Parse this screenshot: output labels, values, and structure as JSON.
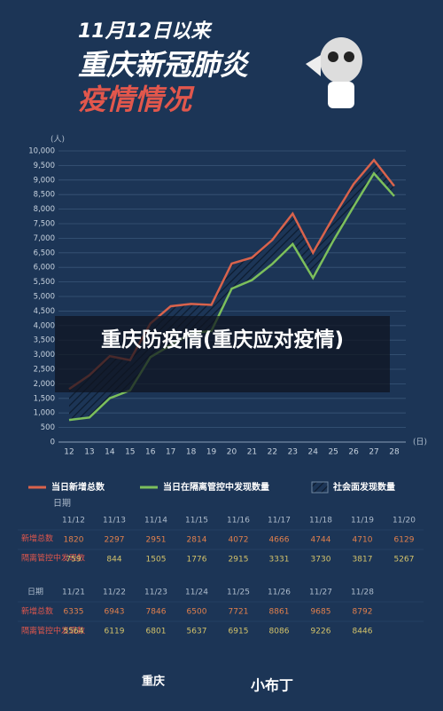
{
  "header": {
    "line1": "11月12日以来",
    "line2": "重庆新冠肺炎",
    "line3": "疫情情况"
  },
  "overlay_caption": "重庆防疫情(重庆应对疫情)",
  "chart_data": {
    "type": "line",
    "y_unit": "(人)",
    "x_unit": "(日)",
    "categories": [
      "12",
      "13",
      "14",
      "15",
      "16",
      "17",
      "18",
      "19",
      "20",
      "21",
      "22",
      "23",
      "24",
      "25",
      "26",
      "27",
      "28"
    ],
    "series": [
      {
        "name": "当日新增总数",
        "color": "#d9634c",
        "values": [
          1820,
          2297,
          2951,
          2814,
          4072,
          4666,
          4744,
          4710,
          6129,
          6335,
          6943,
          7846,
          6500,
          7721,
          8861,
          9685,
          8792
        ]
      },
      {
        "name": "当日在隔离管控中发现数量",
        "color": "#7cbf5c",
        "values": [
          759,
          844,
          1505,
          1776,
          2915,
          3331,
          3730,
          3817,
          5267,
          5564,
          6119,
          6801,
          5637,
          6915,
          8086,
          9226,
          8446
        ]
      }
    ],
    "area_name": "社会面发现数量",
    "ylim": [
      0,
      10000
    ],
    "yticks": [
      0,
      500,
      {
        "value": 1000,
        "label": "1,000"
      },
      {
        "value": 1500,
        "label": "1,500"
      },
      {
        "value": 2000,
        "label": "2,000"
      },
      {
        "value": 2500,
        "label": "2,500"
      },
      {
        "value": 3000,
        "label": "3,000"
      },
      {
        "value": 3500,
        "label": "3,500"
      },
      {
        "value": 4000,
        "label": "4,000"
      },
      {
        "value": 4500,
        "label": "4,500"
      },
      {
        "value": 5000,
        "label": "5,000"
      },
      {
        "value": 5500,
        "label": "5,500"
      },
      {
        "value": 6000,
        "label": "6,000"
      },
      {
        "value": 6500,
        "label": "6,500"
      },
      {
        "value": 7000,
        "label": "7,000"
      },
      {
        "value": 7500,
        "label": "7,500"
      },
      {
        "value": 8000,
        "label": "8,000"
      },
      {
        "value": 8500,
        "label": "8,500"
      },
      {
        "value": 9000,
        "label": "9,000"
      },
      {
        "value": 9500,
        "label": "9,500"
      },
      {
        "value": 10000,
        "label": "10,000"
      }
    ],
    "grid": true
  },
  "table": {
    "date_label": "日期",
    "row1_label": "新增总数",
    "row2_label": "隔离管控中发现数",
    "dates": [
      "11/12",
      "11/13",
      "11/14",
      "11/15",
      "11/16",
      "11/17",
      "11/18",
      "11/19",
      "11/20",
      "11/21",
      "11/22",
      "11/23",
      "11/24",
      "11/25",
      "11/26",
      "11/27",
      "11/28"
    ]
  },
  "footer": {
    "logo1": "重庆",
    "logo2": "小布丁"
  }
}
